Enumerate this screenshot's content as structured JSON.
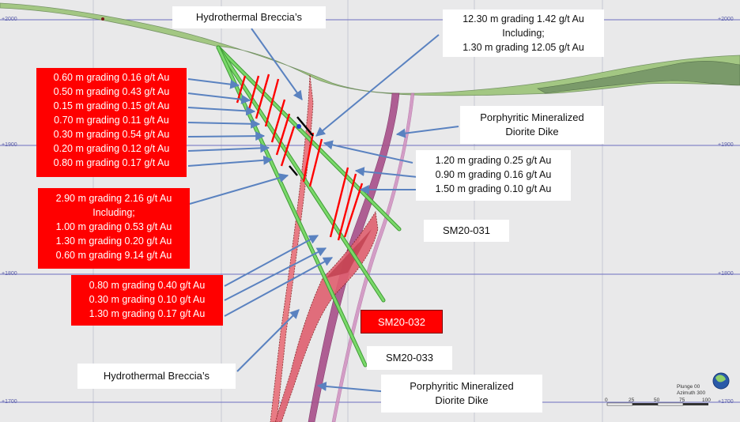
{
  "elevation_labels": [
    "+2000",
    "+1900",
    "+1800",
    "+1700"
  ],
  "labels": {
    "hydrothermal_breccia_top": "Hydrothermal Breccia’s",
    "hydrothermal_breccia_bottom": "Hydrothermal Breccia’s",
    "porphyritic_dike_right": [
      "Porphyritic Mineralized",
      "Diorite Dike"
    ],
    "porphyritic_dike_bottom": [
      "Porphyritic Mineralized",
      "Diorite Dike"
    ],
    "top_intercept": [
      "12.30 m grading 1.42 g/t Au",
      "Including;",
      "1.30 m grading 12.05 g/t Au"
    ],
    "right_intercepts": [
      "1.20 m grading 0.25 g/t Au",
      "0.90 m grading 0.16 g/t Au",
      "1.50 m grading 0.10 g/t Au"
    ],
    "left_intercepts_top": [
      "0.60 m grading 0.16 g/t Au",
      "0.50 m grading 0.43 g/t Au",
      "0.15 m grading 0.15 g/t Au",
      "0.70 m grading 0.11 g/t Au",
      "0.30 m grading 0.54 g/t Au",
      "0.20 m grading 0.12 g/t Au",
      "0.80 m grading 0.17 g/t Au"
    ],
    "left_intercepts_middle": [
      "2.90 m grading 2.16 g/t Au",
      "Including;",
      "1.00 m grading 0.53 g/t Au",
      "1.30 m grading 0.20 g/t Au",
      "0.60 m grading 9.14 g/t Au"
    ],
    "left_intercepts_bottom": [
      "0.80 m grading 0.40 g/t Au",
      "0.30 m grading 0.10 g/t Au",
      "1.30 m grading 0.17 g/t Au"
    ]
  },
  "holes": {
    "sm20_031": "SM20-031",
    "sm20_032": "SM20-032",
    "sm20_033": "SM20-033"
  },
  "compass": {
    "plunge": "Plunge 00",
    "azimuth": "Azimuth 300"
  },
  "scale_bar": [
    "0",
    "25",
    "50",
    "75",
    "100"
  ],
  "colors": {
    "background": "#e9e9ea",
    "drill_hole": "#5cc84a",
    "topography": "#8fbf6a",
    "dike": "#a8508a",
    "breccia": "#e8707a",
    "intercept": "#ff0000",
    "gridline": "#6d6fc0"
  }
}
